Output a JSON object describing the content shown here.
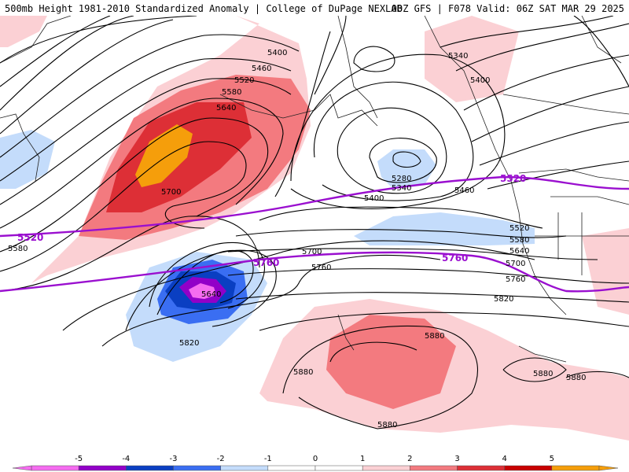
{
  "header": {
    "left": "500mb Height 1981-2010 Standardized Anomaly | College of DuPage NEXLAB",
    "right": "00Z GFS | F078 Valid: 06Z SAT MAR 29 2025"
  },
  "colors": {
    "n5": "#f56cf0",
    "n4": "#9200c8",
    "n3": "#0a3fc2",
    "n2": "#3a6ef2",
    "n1": "#c4dcfb",
    "p1": "#fbd0d4",
    "p2": "#f37a7f",
    "p3": "#dd2f36",
    "p4": "#c80000",
    "p5": "#f59e0b",
    "highlight_contour": "#9a0fcf"
  },
  "contour_labels": [
    {
      "id": "c5400a",
      "text": "5400"
    },
    {
      "id": "c5460",
      "text": "5460"
    },
    {
      "id": "c5520a",
      "text": "5520"
    },
    {
      "id": "c5580a",
      "text": "5580"
    },
    {
      "id": "c5640a",
      "text": "5640"
    },
    {
      "id": "c5700a",
      "text": "5700"
    },
    {
      "id": "c5340a",
      "text": "5340"
    },
    {
      "id": "c5400b",
      "text": "5400"
    },
    {
      "id": "c5280",
      "text": "5280"
    },
    {
      "id": "c5340b",
      "text": "5340"
    },
    {
      "id": "c5400c",
      "text": "5400"
    },
    {
      "id": "c5460b",
      "text": "5460"
    },
    {
      "id": "c5520b",
      "text": "5520"
    },
    {
      "id": "c5580b",
      "text": "5580"
    },
    {
      "id": "c5640b",
      "text": "5640"
    },
    {
      "id": "c5700b",
      "text": "5700"
    },
    {
      "id": "c5760a",
      "text": "5760"
    },
    {
      "id": "c5580c",
      "text": "5580"
    },
    {
      "id": "c5700c",
      "text": "5700"
    },
    {
      "id": "c5760b",
      "text": "5760"
    },
    {
      "id": "c5640c",
      "text": "5640"
    },
    {
      "id": "c5820a",
      "text": "5820"
    },
    {
      "id": "c5820b",
      "text": "5820"
    },
    {
      "id": "c5880a",
      "text": "5880"
    },
    {
      "id": "c5880b",
      "text": "5880"
    },
    {
      "id": "c5880c",
      "text": "5880"
    },
    {
      "id": "c5880d",
      "text": "5880"
    },
    {
      "id": "c5880e",
      "text": "5880"
    }
  ],
  "highlight_labels": [
    {
      "id": "h5520a",
      "text": "5520"
    },
    {
      "id": "h5520b",
      "text": "5520"
    },
    {
      "id": "h5760a",
      "text": "5760"
    },
    {
      "id": "h5760b",
      "text": "5760"
    }
  ],
  "legend": {
    "ticks": [
      "-5",
      "-4",
      "-3",
      "-2",
      "-1",
      "0",
      "1",
      "2",
      "3",
      "4",
      "5"
    ]
  }
}
